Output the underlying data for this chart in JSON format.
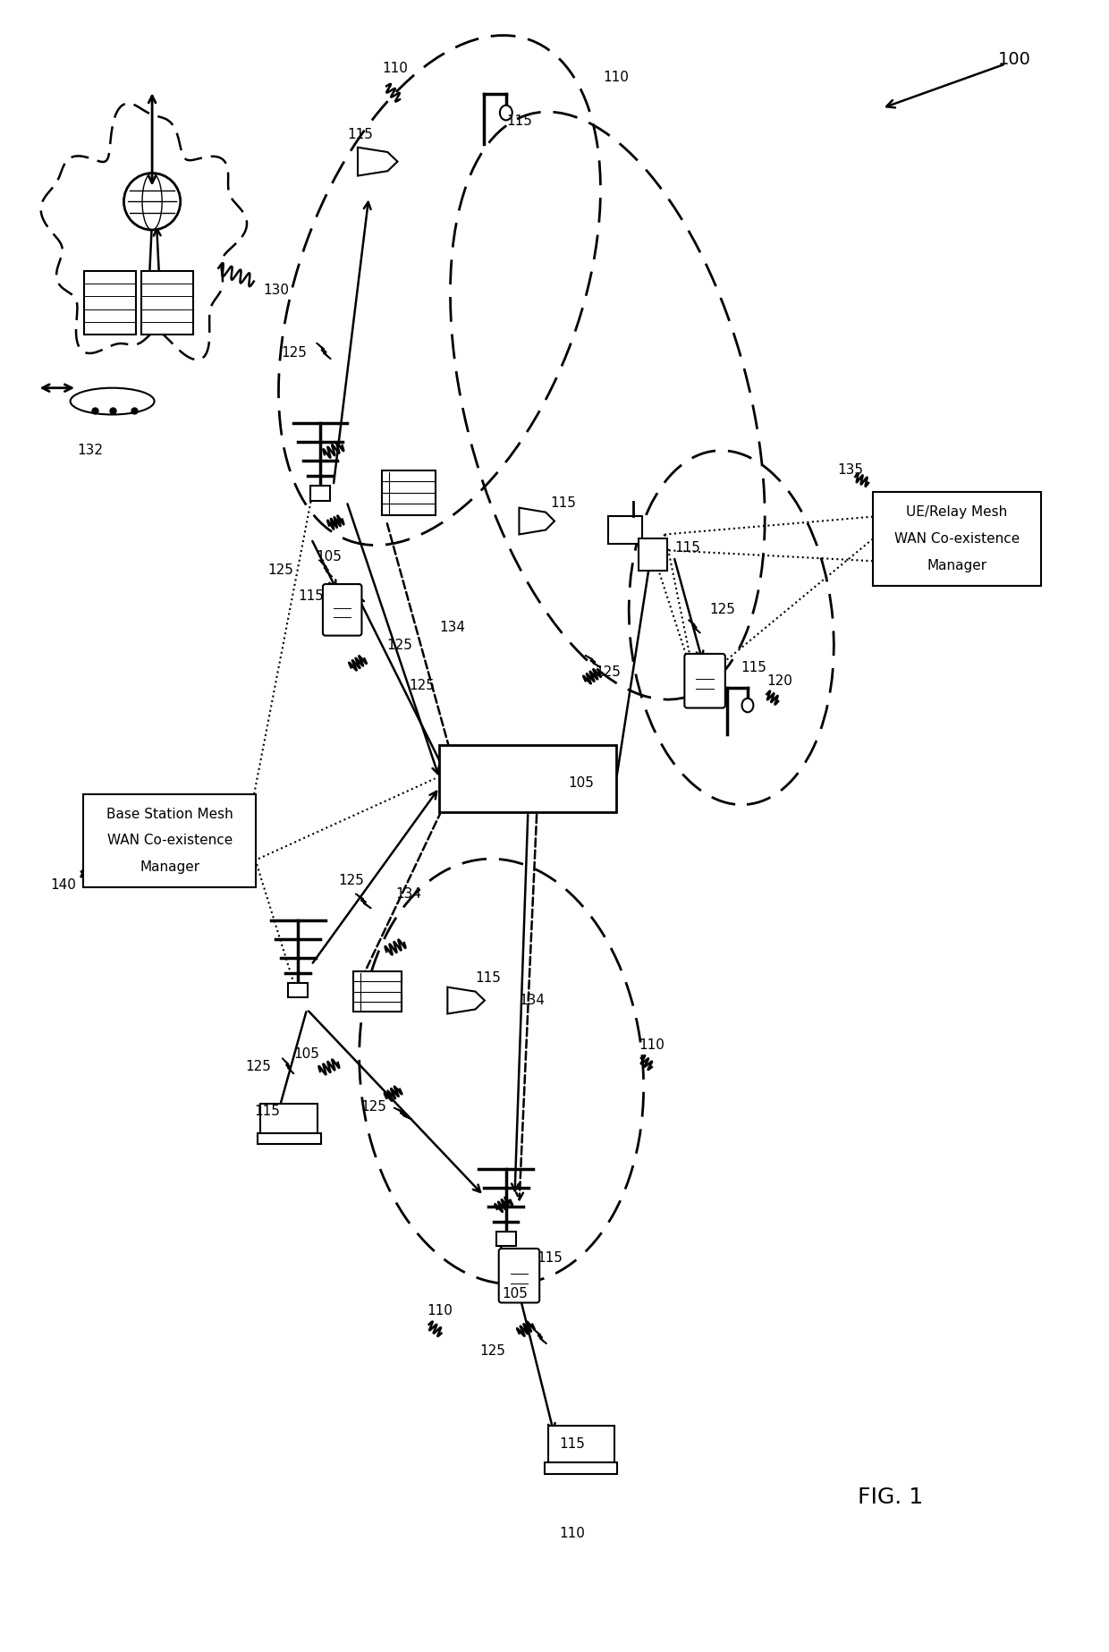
{
  "fig_width": 12.4,
  "fig_height": 18.47,
  "dpi": 100,
  "bg_color": "#ffffff",
  "box_bs": [
    "Base Station Mesh",
    "WAN Co-existence",
    "Manager"
  ],
  "box_ue": [
    "UE/Relay Mesh",
    "WAN Co-existence",
    "Manager"
  ],
  "label_100": "100",
  "label_fig": "FIG. 1"
}
